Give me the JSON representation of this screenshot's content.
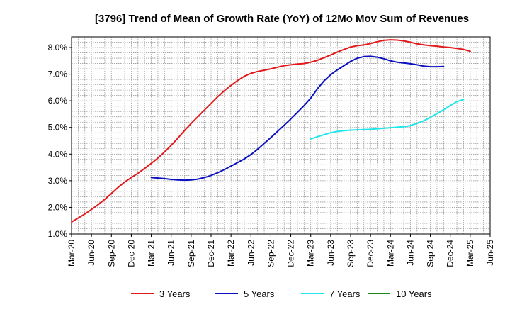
{
  "chart_data": {
    "type": "line",
    "title": "[3796]  Trend of Mean of Growth Rate (YoY) of 12Mo Mov Sum of Revenues",
    "xlabel": "",
    "ylabel": "",
    "ylim": [
      1.0,
      8.4
    ],
    "y_ticks": [
      1.0,
      2.0,
      3.0,
      4.0,
      5.0,
      6.0,
      7.0,
      8.0
    ],
    "y_tick_labels": [
      "1.0%",
      "2.0%",
      "3.0%",
      "4.0%",
      "5.0%",
      "6.0%",
      "7.0%",
      "8.0%"
    ],
    "x_tick_labels": [
      "Mar-20",
      "Jun-20",
      "Sep-20",
      "Dec-20",
      "Mar-21",
      "Jun-21",
      "Sep-21",
      "Dec-21",
      "Mar-22",
      "Jun-22",
      "Sep-22",
      "Dec-22",
      "Mar-23",
      "Jun-23",
      "Sep-23",
      "Dec-23",
      "Mar-24",
      "Jun-24",
      "Sep-24",
      "Dec-24",
      "Mar-25",
      "Jun-25"
    ],
    "grid": true,
    "legend_position": "bottom",
    "series": [
      {
        "name": "3 Years",
        "color": "#e31a1c",
        "start_month_index": 0,
        "values": [
          1.45,
          1.6,
          1.75,
          1.92,
          2.1,
          2.3,
          2.52,
          2.75,
          2.95,
          3.12,
          3.28,
          3.46,
          3.65,
          3.85,
          4.08,
          4.33,
          4.6,
          4.88,
          5.15,
          5.4,
          5.65,
          5.9,
          6.15,
          6.38,
          6.58,
          6.76,
          6.92,
          7.03,
          7.1,
          7.15,
          7.2,
          7.26,
          7.32,
          7.35,
          7.38,
          7.4,
          7.45,
          7.52,
          7.62,
          7.72,
          7.83,
          7.93,
          8.02,
          8.07,
          8.1,
          8.15,
          8.22,
          8.27,
          8.29,
          8.28,
          8.25,
          8.2,
          8.14,
          8.1,
          8.07,
          8.05,
          8.02,
          8.0,
          7.97,
          7.93,
          7.86
        ]
      },
      {
        "name": "5 Years",
        "color": "#0a0fbf",
        "start_month_index": 12,
        "values": [
          3.12,
          3.1,
          3.08,
          3.05,
          3.03,
          3.02,
          3.03,
          3.06,
          3.12,
          3.2,
          3.3,
          3.42,
          3.55,
          3.68,
          3.82,
          3.98,
          4.18,
          4.4,
          4.62,
          4.85,
          5.08,
          5.32,
          5.57,
          5.82,
          6.1,
          6.45,
          6.75,
          6.98,
          7.16,
          7.32,
          7.48,
          7.6,
          7.66,
          7.67,
          7.64,
          7.58,
          7.5,
          7.45,
          7.42,
          7.39,
          7.35,
          7.3,
          7.28,
          7.28,
          7.29
        ]
      },
      {
        "name": "7 Years",
        "color": "#1ee6ea",
        "start_month_index": 36,
        "values": [
          4.57,
          4.65,
          4.73,
          4.8,
          4.85,
          4.88,
          4.9,
          4.91,
          4.92,
          4.93,
          4.95,
          4.97,
          4.99,
          5.01,
          5.03,
          5.07,
          5.15,
          5.25,
          5.38,
          5.52,
          5.66,
          5.82,
          5.97,
          6.05
        ]
      },
      {
        "name": "10 Years",
        "color": "#1b8a1b",
        "start_month_index": 0,
        "values": []
      }
    ]
  }
}
